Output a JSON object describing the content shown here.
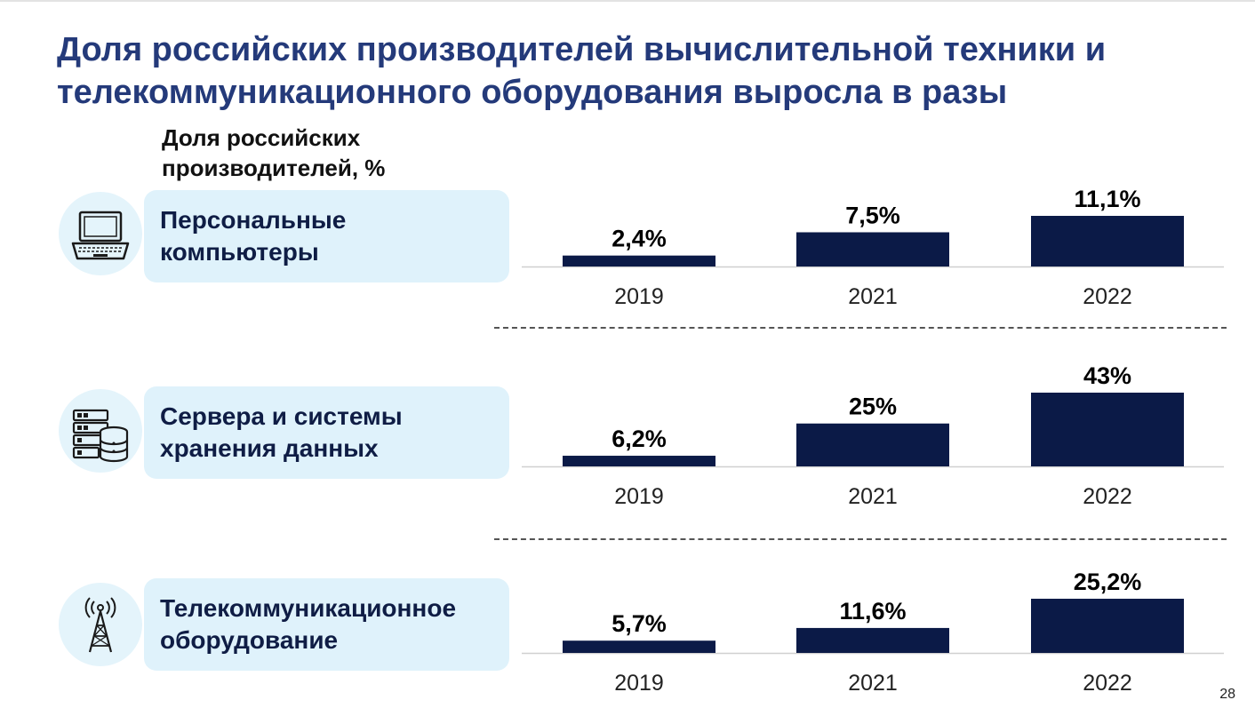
{
  "title": {
    "line1": "Доля российских производителей вычислительной техники и",
    "line2": "телекоммуникационного оборудования выросла в разы"
  },
  "subtitle": {
    "line1": "Доля российских",
    "line2": "производителей, %"
  },
  "page_number": "28",
  "colors": {
    "title": "#243a7a",
    "bar": "#0b1a47",
    "label_box": "#dff2fb",
    "icon_circle": "#e4f4fb"
  },
  "rows": [
    {
      "label_line1": "Персональные",
      "label_line2": "компьютеры",
      "icon": "laptop-icon"
    },
    {
      "label_line1": "Сервера и системы",
      "label_line2": "хранения данных",
      "icon": "server-storage-icon"
    },
    {
      "label_line1": "Телекоммуникационное",
      "label_line2": "оборудование",
      "icon": "radio-tower-icon"
    }
  ],
  "chart_data": [
    {
      "type": "bar",
      "categories": [
        "2019",
        "2021",
        "2022"
      ],
      "values": [
        2.4,
        7.5,
        11.1
      ],
      "value_labels": [
        "2,4%",
        "7,5%",
        "11,1%"
      ],
      "unit": "%",
      "ylim": [
        0,
        11.1
      ],
      "grid": false
    },
    {
      "type": "bar",
      "categories": [
        "2019",
        "2021",
        "2022"
      ],
      "values": [
        6.2,
        25,
        43
      ],
      "value_labels": [
        "6,2%",
        "25%",
        "43%"
      ],
      "unit": "%",
      "ylim": [
        0,
        43
      ],
      "grid": false
    },
    {
      "type": "bar",
      "categories": [
        "2019",
        "2021",
        "2022"
      ],
      "values": [
        5.7,
        11.6,
        25.2
      ],
      "value_labels": [
        "5,7%",
        "11,6%",
        "25,2%"
      ],
      "unit": "%",
      "ylim": [
        0,
        25.2
      ],
      "grid": false
    }
  ]
}
